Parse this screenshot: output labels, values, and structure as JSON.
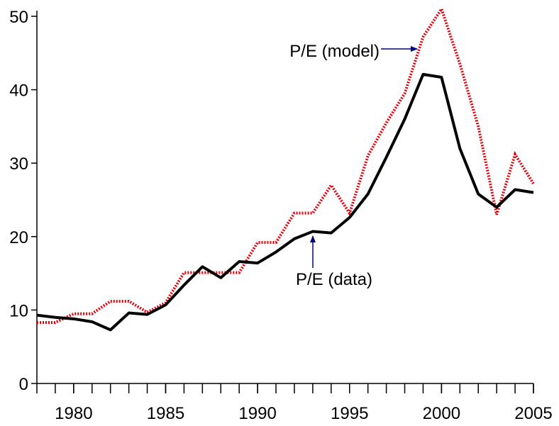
{
  "chart_data": {
    "type": "line",
    "x": [
      1978,
      1979,
      1980,
      1981,
      1982,
      1983,
      1984,
      1985,
      1986,
      1987,
      1988,
      1989,
      1990,
      1991,
      1992,
      1993,
      1994,
      1995,
      1996,
      1997,
      1998,
      1999,
      2000,
      2001,
      2002,
      2003,
      2004,
      2005
    ],
    "series": [
      {
        "name": "P/E (data)",
        "color": "#000000",
        "style": "solid",
        "values": [
          9.3,
          9.0,
          8.8,
          8.4,
          7.3,
          9.6,
          9.4,
          10.7,
          13.4,
          15.9,
          14.4,
          16.6,
          16.4,
          17.9,
          19.7,
          20.7,
          20.5,
          22.6,
          25.8,
          30.8,
          36.0,
          42.1,
          41.7,
          32.0,
          25.8,
          24.0,
          26.4,
          26.0
        ]
      },
      {
        "name": "P/E (model)",
        "color": "#e8000b",
        "style": "dotted",
        "values": [
          8.3,
          8.3,
          9.5,
          9.5,
          11.2,
          11.2,
          9.7,
          11.0,
          15.1,
          15.1,
          15.1,
          15.1,
          19.2,
          19.2,
          23.2,
          23.2,
          27.0,
          23.2,
          31.0,
          35.5,
          39.5,
          47.2,
          51.0,
          43.5,
          35.0,
          23.0,
          31.2,
          27.2
        ]
      }
    ],
    "xlim": [
      1978,
      2005
    ],
    "xticks": [
      1980,
      1985,
      1990,
      1995,
      2000,
      2005
    ],
    "ylim": [
      0,
      50
    ],
    "yticks": [
      0,
      10,
      20,
      30,
      40,
      50
    ],
    "grid": false
  }
}
